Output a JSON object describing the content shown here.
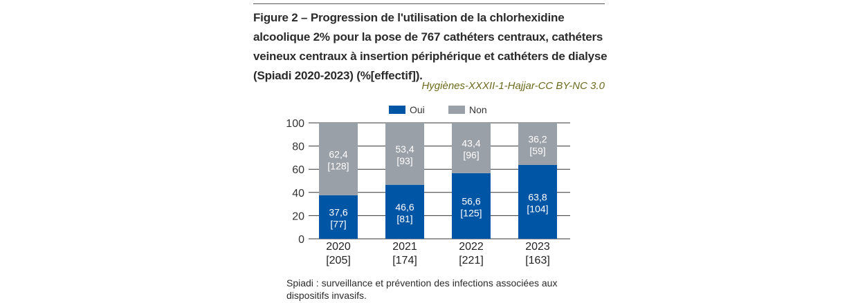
{
  "figure": {
    "title": "Figure 2 – Progression de l'utilisation de la chlorhexidine alcoolique 2% pour la pose de 767 cathéters centraux, cathéters veineux centraux à insertion périphérique et cathéters de dialyse (Spiadi 2020-2023) (%[effectif]).",
    "credit": "Hygiènes-XXXII-1-Hajjar-CC BY-NC 3.0",
    "note": "Spiadi : surveillance et prévention des infections associées aux dispositifs invasifs."
  },
  "chart_data": {
    "type": "bar",
    "stacked": true,
    "title": "Progression de l'utilisation de la chlorhexidine alcoolique 2% (Spiadi 2020-2023) (%[effectif])",
    "xlabel": "",
    "ylabel": "",
    "ylim": [
      0,
      100
    ],
    "yticks": [
      "0",
      "20",
      "40",
      "60",
      "80",
      "100"
    ],
    "grid": true,
    "legend_position": "top",
    "categories": [
      "2020",
      "2021",
      "2022",
      "2023"
    ],
    "category_counts": [
      "[205]",
      "[174]",
      "[221]",
      "[163]"
    ],
    "series": [
      {
        "name": "Oui",
        "color": "#0055a5",
        "values": [
          37.6,
          46.6,
          56.6,
          63.8
        ],
        "value_labels": [
          "37,6",
          "46,6",
          "56,6",
          "63,8"
        ],
        "count_labels": [
          "[77]",
          "[81]",
          "[125]",
          "[104]"
        ]
      },
      {
        "name": "Non",
        "color": "#9aa0a8",
        "values": [
          62.4,
          53.4,
          43.4,
          36.2
        ],
        "value_labels": [
          "62,4",
          "53,4",
          "43,4",
          "36,2"
        ],
        "count_labels": [
          "[128]",
          "[93]",
          "[96]",
          "[59]"
        ]
      }
    ]
  }
}
